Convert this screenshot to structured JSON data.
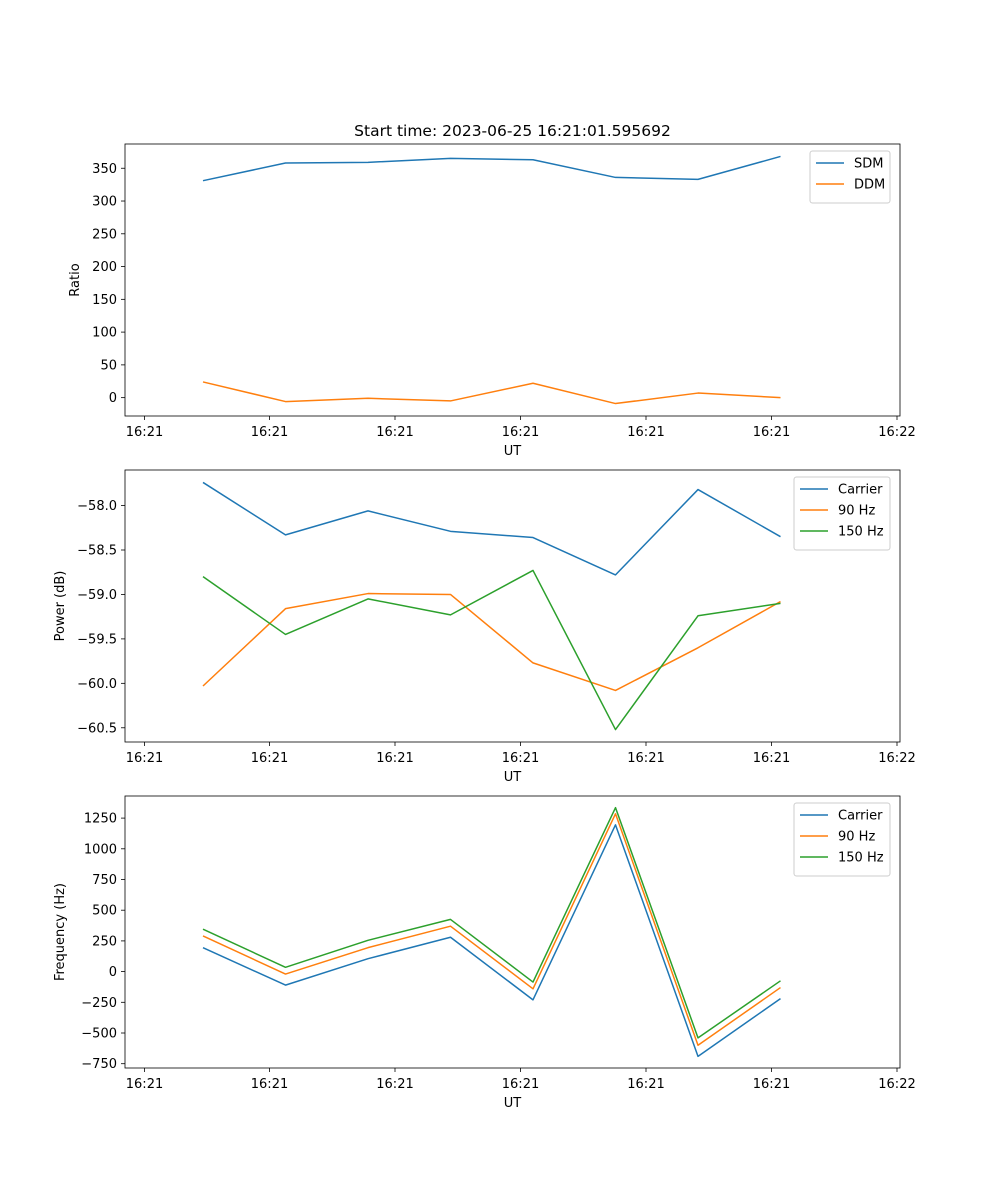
{
  "figure": {
    "title": "Start time: 2023-06-25 16:21:01.595692"
  },
  "chart_data": [
    {
      "type": "line",
      "xlabel": "UT",
      "ylabel": "Ratio",
      "x_tick_labels": [
        "16:21",
        "16:21",
        "16:21",
        "16:21",
        "16:21",
        "16:21",
        "16:22"
      ],
      "y_ticks": [
        0,
        50,
        100,
        150,
        200,
        250,
        300,
        350
      ],
      "ylim": [
        -28,
        387
      ],
      "legend_position": "upper-right",
      "series": [
        {
          "name": "SDM",
          "color": "#1f77b4",
          "values": [
            331,
            358,
            359,
            365,
            363,
            336,
            333,
            368
          ]
        },
        {
          "name": "DDM",
          "color": "#ff7f0e",
          "values": [
            24,
            -6,
            -1,
            -5,
            22,
            -9,
            7,
            0
          ]
        }
      ]
    },
    {
      "type": "line",
      "xlabel": "UT",
      "ylabel": "Power (dB)",
      "x_tick_labels": [
        "16:21",
        "16:21",
        "16:21",
        "16:21",
        "16:21",
        "16:21",
        "16:22"
      ],
      "y_ticks": [
        -58.0,
        -58.5,
        -59.0,
        -59.5,
        -60.0,
        -60.5
      ],
      "ylim": [
        -60.66,
        -57.6
      ],
      "legend_position": "upper-right",
      "series": [
        {
          "name": "Carrier",
          "color": "#1f77b4",
          "values": [
            -57.74,
            -58.33,
            -58.06,
            -58.29,
            -58.36,
            -58.78,
            -57.82,
            -58.35
          ]
        },
        {
          "name": "90 Hz",
          "color": "#ff7f0e",
          "values": [
            -60.03,
            -59.16,
            -58.99,
            -59.0,
            -59.77,
            -60.08,
            -59.6,
            -59.08
          ]
        },
        {
          "name": "150 Hz",
          "color": "#2ca02c",
          "values": [
            -58.8,
            -59.45,
            -59.05,
            -59.23,
            -58.73,
            -60.52,
            -59.24,
            -59.1
          ]
        }
      ]
    },
    {
      "type": "line",
      "xlabel": "UT",
      "ylabel": "Frequency (Hz)",
      "x_tick_labels": [
        "16:21",
        "16:21",
        "16:21",
        "16:21",
        "16:21",
        "16:21",
        "16:22"
      ],
      "y_ticks": [
        -750,
        -500,
        -250,
        0,
        250,
        500,
        750,
        1000,
        1250
      ],
      "ylim": [
        -785,
        1430
      ],
      "legend_position": "upper-right",
      "series": [
        {
          "name": "Carrier",
          "color": "#1f77b4",
          "values": [
            195,
            -110,
            105,
            280,
            -230,
            1195,
            -690,
            -220
          ]
        },
        {
          "name": "90 Hz",
          "color": "#ff7f0e",
          "values": [
            290,
            -20,
            195,
            370,
            -140,
            1285,
            -600,
            -130
          ]
        },
        {
          "name": "150 Hz",
          "color": "#2ca02c",
          "values": [
            345,
            35,
            255,
            425,
            -85,
            1335,
            -540,
            -75
          ]
        }
      ]
    }
  ]
}
